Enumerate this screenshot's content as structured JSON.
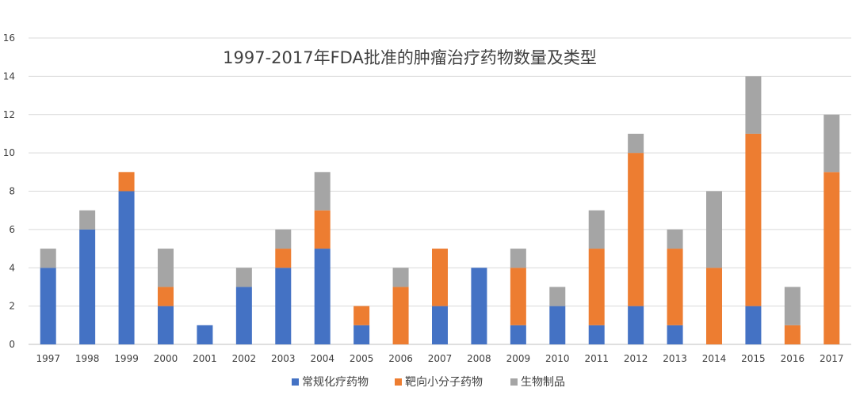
{
  "chart_data": {
    "type": "bar",
    "stacked": true,
    "title": "1997-2017年FDA批准的肿瘤治疗药物数量及类型",
    "xlabel": "",
    "ylabel": "",
    "ylim": [
      0,
      16
    ],
    "yticks": [
      0,
      2,
      4,
      6,
      8,
      10,
      12,
      14,
      16
    ],
    "grid": true,
    "legend_position": "bottom",
    "categories": [
      "1997",
      "1998",
      "1999",
      "2000",
      "2001",
      "2002",
      "2003",
      "2004",
      "2005",
      "2006",
      "2007",
      "2008",
      "2009",
      "2010",
      "2011",
      "2012",
      "2013",
      "2014",
      "2015",
      "2016",
      "2017"
    ],
    "series": [
      {
        "name": "常规化疗药物",
        "color": "#4472C4",
        "values": [
          4,
          6,
          8,
          2,
          1,
          3,
          4,
          5,
          1,
          0,
          2,
          4,
          1,
          2,
          1,
          2,
          1,
          0,
          2,
          0,
          0
        ]
      },
      {
        "name": "靶向小分子药物",
        "color": "#ED7D31",
        "values": [
          0,
          0,
          1,
          1,
          0,
          0,
          1,
          2,
          1,
          3,
          3,
          0,
          3,
          0,
          4,
          8,
          4,
          4,
          9,
          1,
          9
        ]
      },
      {
        "name": "生物制品",
        "color": "#A5A5A5",
        "values": [
          1,
          1,
          0,
          2,
          0,
          1,
          1,
          2,
          0,
          1,
          0,
          0,
          1,
          1,
          2,
          1,
          1,
          4,
          3,
          2,
          3
        ]
      }
    ]
  }
}
